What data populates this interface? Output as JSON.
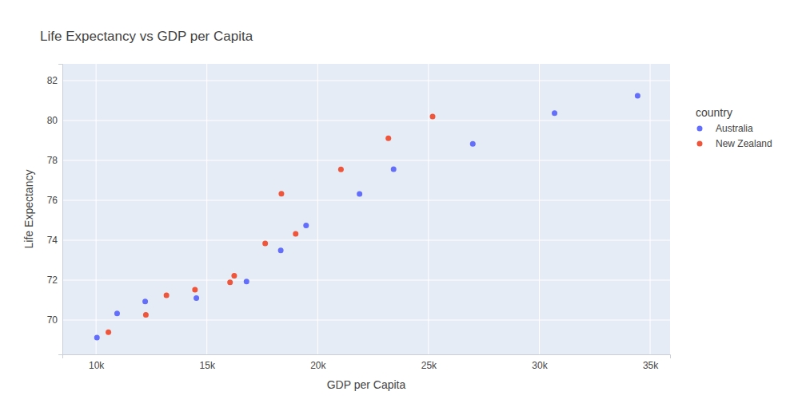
{
  "chart_data": {
    "type": "scatter",
    "title": "Life Expectancy vs GDP per Capita",
    "x_label": "GDP per Capita",
    "y_label": "Life Expectancy",
    "legend_title": "country",
    "legend": "top-right",
    "grid": true,
    "marker": "circle",
    "xlim": [
      8480,
      35900
    ],
    "xticks": [
      {
        "value": 10000,
        "label": "10k"
      },
      {
        "value": 15000,
        "label": "15k"
      },
      {
        "value": 20000,
        "label": "20k"
      },
      {
        "value": 25000,
        "label": "25k"
      },
      {
        "value": 30000,
        "label": "30k"
      },
      {
        "value": 35000,
        "label": "35k"
      }
    ],
    "ylim": [
      68.28,
      82.84
    ],
    "yticks": [
      70,
      72,
      74,
      76,
      78,
      80,
      82
    ],
    "series": [
      {
        "name": "Australia",
        "color": "#636efa",
        "x": [
          10040,
          10950,
          12217,
          14526,
          16789,
          18334,
          19477,
          21889,
          23425,
          26998,
          30688,
          34435
        ],
        "values": [
          69.12,
          70.33,
          70.93,
          71.1,
          71.93,
          73.49,
          74.74,
          76.32,
          77.56,
          78.83,
          80.37,
          81.24
        ]
      },
      {
        "name": "New Zealand",
        "color": "#EF553B",
        "x": [
          10557,
          12247,
          13176,
          14464,
          16046,
          16234,
          17632,
          19007,
          18363,
          21050,
          23190,
          25185
        ],
        "values": [
          69.39,
          70.26,
          71.24,
          71.52,
          71.89,
          72.22,
          73.84,
          74.32,
          76.33,
          77.55,
          79.11,
          80.2
        ]
      }
    ]
  }
}
